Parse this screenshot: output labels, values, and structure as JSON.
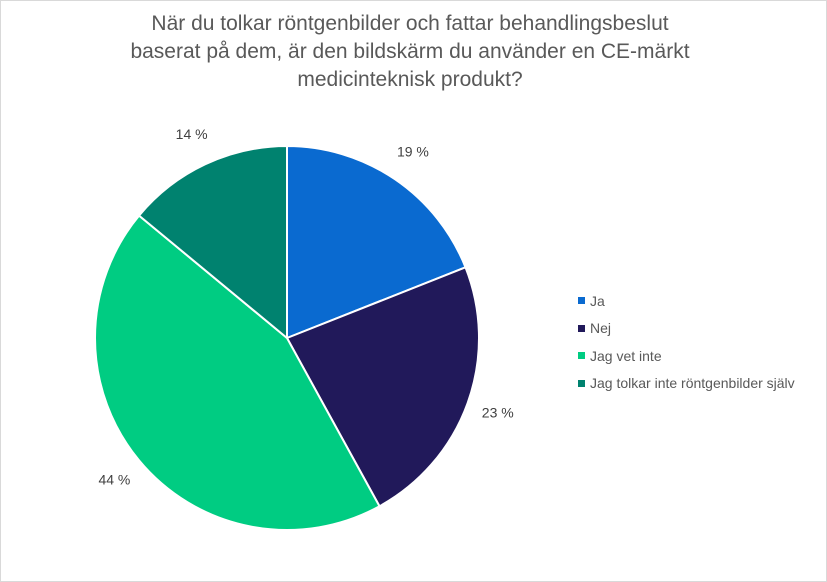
{
  "chart_data": {
    "type": "pie",
    "title": "När du tolkar röntgenbilder och fattar behandlingsbeslut baserat på dem, är den bildskärm du använder en CE-märkt medicinteknisk produkt?",
    "title_lines": [
      "När du tolkar röntgenbilder och fattar behandlingsbeslut",
      "baserat på dem, är den bildskärm du använder en CE-märkt",
      "medicinteknisk produkt?"
    ],
    "legend_position": "right",
    "slices": [
      {
        "label": "Ja",
        "value": 19,
        "data_label": "19 %",
        "color": "#0A6AD0"
      },
      {
        "label": "Nej",
        "value": 23,
        "data_label": "23 %",
        "color": "#21195A"
      },
      {
        "label": "Jag vet inte",
        "value": 44,
        "data_label": "44 %",
        "color": "#00CC82"
      },
      {
        "label": "Jag tolkar inte röntgenbilder själv",
        "value": 14,
        "data_label": "14 %",
        "color": "#00826F"
      }
    ]
  }
}
